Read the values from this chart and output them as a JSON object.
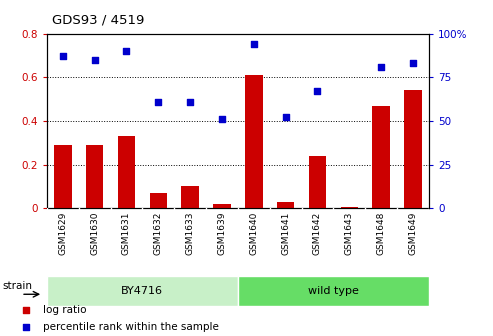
{
  "title": "GDS93 / 4519",
  "categories": [
    "GSM1629",
    "GSM1630",
    "GSM1631",
    "GSM1632",
    "GSM1633",
    "GSM1639",
    "GSM1640",
    "GSM1641",
    "GSM1642",
    "GSM1643",
    "GSM1648",
    "GSM1649"
  ],
  "log_ratio": [
    0.29,
    0.29,
    0.33,
    0.07,
    0.1,
    0.02,
    0.61,
    0.03,
    0.24,
    0.005,
    0.47,
    0.54
  ],
  "percentile_rank": [
    87,
    85,
    90,
    61,
    61,
    51,
    94,
    52,
    67,
    null,
    81,
    83
  ],
  "bar_color": "#cc0000",
  "dot_color": "#0000cc",
  "ylim_left": [
    0,
    0.8
  ],
  "ylim_right": [
    0,
    100
  ],
  "yticks_left": [
    0,
    0.2,
    0.4,
    0.6,
    0.8
  ],
  "ytick_labels_left": [
    "0",
    "0.2",
    "0.4",
    "0.6",
    "0.8"
  ],
  "yticks_right": [
    0,
    25,
    50,
    75,
    100
  ],
  "ytick_labels_right": [
    "0",
    "25",
    "50",
    "75",
    "100%"
  ],
  "group1_label": "BY4716",
  "group2_label": "wild type",
  "group1_count": 6,
  "strain_label": "strain",
  "bg_color_plot": "#ffffff",
  "bg_color_xtick": "#c8c8c8",
  "bg_color_group1": "#c8f0c8",
  "bg_color_group2": "#66dd66",
  "legend_log_ratio": "log ratio",
  "legend_percentile": "percentile rank within the sample"
}
